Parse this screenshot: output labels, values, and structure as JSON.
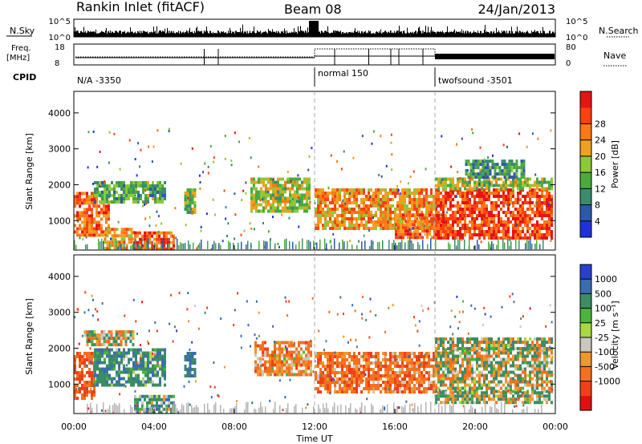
{
  "header": {
    "station": "Rankin Inlet (fitACF)",
    "beam": "Beam 08",
    "date": "24/Jan/2013"
  },
  "noise_panel": {
    "left_label": "N.Sky",
    "right_label": "N.Search",
    "left_ticks": [
      "10^5",
      "10^0"
    ],
    "right_ticks": [
      "10^5",
      "10^0"
    ]
  },
  "freq_panel": {
    "left_label_line1": "Freq.",
    "left_label_line2": "[MHz]",
    "left_ticks": [
      "18",
      "8"
    ],
    "right_label": "Nave",
    "right_ticks": [
      "80",
      "0"
    ]
  },
  "cpid_panel": {
    "label": "CPID",
    "segments": [
      {
        "name": "N/A -3350",
        "start_hour": 0
      },
      {
        "name": "normal 150",
        "start_hour": 12
      },
      {
        "name": "twofsound -3501",
        "start_hour": 18
      }
    ]
  },
  "colors": {
    "power": [
      "#1e32dc",
      "#2c5aa8",
      "#3a8c6c",
      "#4caa3c",
      "#8cc83c",
      "#f0a020",
      "#ff7818",
      "#ff4010",
      "#e61414"
    ],
    "velocity": [
      "#2a40c8",
      "#3a6cb0",
      "#3c8c64",
      "#4cb43c",
      "#a8d848",
      "#c8c8c0",
      "#f09830",
      "#f47020",
      "#f04018",
      "#e01010"
    ],
    "ground_scatter": "#b4b4b4"
  },
  "chart_data": [
    {
      "type": "heatmap",
      "name": "power",
      "x": {
        "label": "Time UT",
        "range_hours": [
          0,
          24
        ],
        "ticks": [
          "00:00",
          "04:00",
          "08:00",
          "12:00",
          "16:00",
          "20:00",
          "00:00"
        ]
      },
      "y": {
        "label": "Slant Range [km]",
        "range_km": [
          180,
          4600
        ],
        "ticks": [
          "1000",
          "2000",
          "3000",
          "4000"
        ]
      },
      "colorbar": {
        "label": "Power [dB]",
        "range": [
          0,
          32
        ],
        "ticks": [
          "4",
          "8",
          "12",
          "16",
          "20",
          "24",
          "28"
        ]
      },
      "regions": [
        {
          "t": [
            0.0,
            1.8
          ],
          "r": [
            600,
            1800
          ],
          "v": 24
        },
        {
          "t": [
            1.0,
            4.5
          ],
          "r": [
            1500,
            2100
          ],
          "v": 12
        },
        {
          "t": [
            1.5,
            3.0
          ],
          "r": [
            200,
            800
          ],
          "v": 20
        },
        {
          "t": [
            3.0,
            5.0
          ],
          "r": [
            200,
            700
          ],
          "v": 26
        },
        {
          "t": [
            5.5,
            6.0
          ],
          "r": [
            1200,
            1900
          ],
          "v": 14
        },
        {
          "t": [
            8.8,
            11.8
          ],
          "r": [
            1300,
            2200
          ],
          "v": 16
        },
        {
          "t": [
            12.0,
            18.0
          ],
          "r": [
            800,
            1900
          ],
          "v": 22
        },
        {
          "t": [
            16.0,
            18.5
          ],
          "r": [
            500,
            1200
          ],
          "v": 24
        },
        {
          "t": [
            18.0,
            23.8
          ],
          "r": [
            500,
            1900
          ],
          "v": 27
        },
        {
          "t": [
            18.0,
            23.8
          ],
          "r": [
            1900,
            2200
          ],
          "v": 16
        },
        {
          "t": [
            19.5,
            22.5
          ],
          "r": [
            2200,
            2700
          ],
          "v": 10
        }
      ]
    },
    {
      "type": "heatmap",
      "name": "velocity",
      "x": {
        "label": "Time UT",
        "range_hours": [
          0,
          24
        ],
        "ticks": [
          "00:00",
          "04:00",
          "08:00",
          "12:00",
          "16:00",
          "20:00",
          "00:00"
        ]
      },
      "y": {
        "label": "Slant Range [km]",
        "range_km": [
          180,
          4600
        ],
        "ticks": [
          "1000",
          "2000",
          "3000",
          "4000"
        ]
      },
      "colorbar": {
        "label": "Velocity [m s⁻¹]",
        "ticks": [
          "1000",
          "500",
          "100",
          "25",
          "-25",
          "-100",
          "-500",
          "-1000"
        ]
      },
      "regions": [
        {
          "t": [
            0.0,
            1.0
          ],
          "r": [
            600,
            1900
          ],
          "v": -300
        },
        {
          "t": [
            1.0,
            4.5
          ],
          "r": [
            1000,
            2000
          ],
          "v": 200
        },
        {
          "t": [
            0.5,
            3.0
          ],
          "r": [
            2100,
            2500
          ],
          "v": 0
        },
        {
          "t": [
            3.0,
            5.0
          ],
          "r": [
            200,
            700
          ],
          "v": 150
        },
        {
          "t": [
            5.5,
            6.0
          ],
          "r": [
            1200,
            1900
          ],
          "v": 300
        },
        {
          "t": [
            9.0,
            11.8
          ],
          "r": [
            1300,
            2200
          ],
          "v": -150
        },
        {
          "t": [
            12.0,
            18.0
          ],
          "r": [
            800,
            1900
          ],
          "v": -200
        },
        {
          "t": [
            18.0,
            23.8
          ],
          "r": [
            800,
            2000
          ],
          "v": 0
        },
        {
          "t": [
            18.0,
            23.8
          ],
          "r": [
            500,
            800
          ],
          "v": 50
        },
        {
          "t": [
            18.0,
            23.8
          ],
          "r": [
            2000,
            2300
          ],
          "v": 40
        }
      ]
    }
  ]
}
